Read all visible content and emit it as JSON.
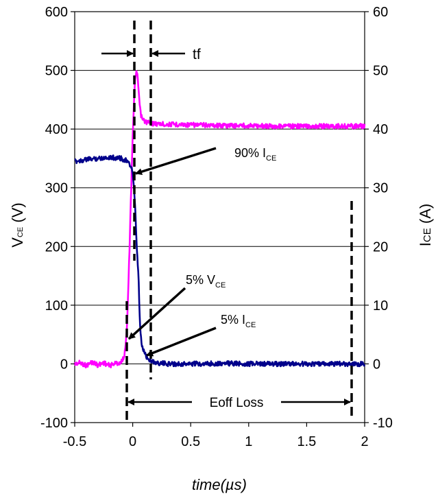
{
  "chart_data": {
    "type": "line",
    "xlabel": "time(µs)",
    "ylabel_left_main": "V",
    "ylabel_left_sub": "CE",
    "ylabel_left_unit": " (V)",
    "ylabel_right_main": "I",
    "ylabel_right_sub": "CE",
    "ylabel_right_unit": " (A)",
    "xlim": [
      -0.5,
      2
    ],
    "ylim_left": [
      -100,
      600
    ],
    "ylim_right": [
      -10,
      60
    ],
    "x_ticks": [
      "-0.5",
      "0",
      "0.5",
      "1",
      "1.5",
      "2"
    ],
    "y_left_ticks": [
      "-100",
      "0",
      "100",
      "200",
      "300",
      "400",
      "500",
      "600"
    ],
    "y_right_ticks": [
      "-10",
      "0",
      "10",
      "20",
      "30",
      "40",
      "50",
      "60"
    ],
    "grid": "horizontal",
    "series": [
      {
        "axis": "left",
        "color": "#ff00ff",
        "x": [
          -0.5,
          -0.45,
          -0.4,
          -0.35,
          -0.3,
          -0.25,
          -0.2,
          -0.15,
          -0.1,
          -0.07,
          -0.05,
          -0.04,
          -0.03,
          -0.02,
          -0.01,
          0.0,
          0.01,
          0.02,
          0.03,
          0.04,
          0.05,
          0.06,
          0.07,
          0.08,
          0.09,
          0.1,
          0.12,
          0.15,
          0.2,
          0.3,
          0.4,
          0.5,
          0.6,
          0.8,
          1.0,
          1.2,
          1.4,
          1.6,
          1.8,
          2.0
        ],
        "y": [
          0,
          2,
          -3,
          3,
          -2,
          2,
          -3,
          1,
          2,
          15,
          60,
          120,
          180,
          250,
          320,
          390,
          440,
          480,
          500,
          490,
          470,
          440,
          425,
          418,
          415,
          414,
          412,
          410,
          409,
          408,
          408,
          407,
          407,
          406,
          406,
          405,
          405,
          405,
          405,
          405
        ]
      },
      {
        "axis": "right",
        "color": "#00008b",
        "x": [
          -0.5,
          -0.4,
          -0.3,
          -0.2,
          -0.1,
          -0.05,
          -0.03,
          -0.01,
          0.0,
          0.01,
          0.02,
          0.03,
          0.04,
          0.05,
          0.06,
          0.07,
          0.08,
          0.09,
          0.1,
          0.12,
          0.15,
          0.2,
          0.3,
          0.5,
          0.8,
          1.0,
          1.3,
          1.6,
          1.9,
          2.0
        ],
        "y": [
          34.5,
          34.8,
          35.0,
          35.2,
          35.0,
          34.6,
          34.0,
          33.5,
          32.5,
          30.0,
          27.0,
          22.0,
          18.0,
          15.0,
          8.0,
          4.5,
          3.0,
          2.5,
          2.0,
          1.2,
          0.6,
          0.2,
          0.0,
          0.0,
          0.1,
          0.0,
          0.0,
          0.0,
          0.0,
          0.0
        ]
      }
    ],
    "annotations": {
      "tf": "tf",
      "ice90_main": "90% I",
      "ice90_sub": "CE",
      "vce5_main": "5% V",
      "vce5_sub": "CE",
      "ice5_main": "5% I",
      "ice5_sub": "CE",
      "eoff": "Eoff Loss"
    }
  }
}
